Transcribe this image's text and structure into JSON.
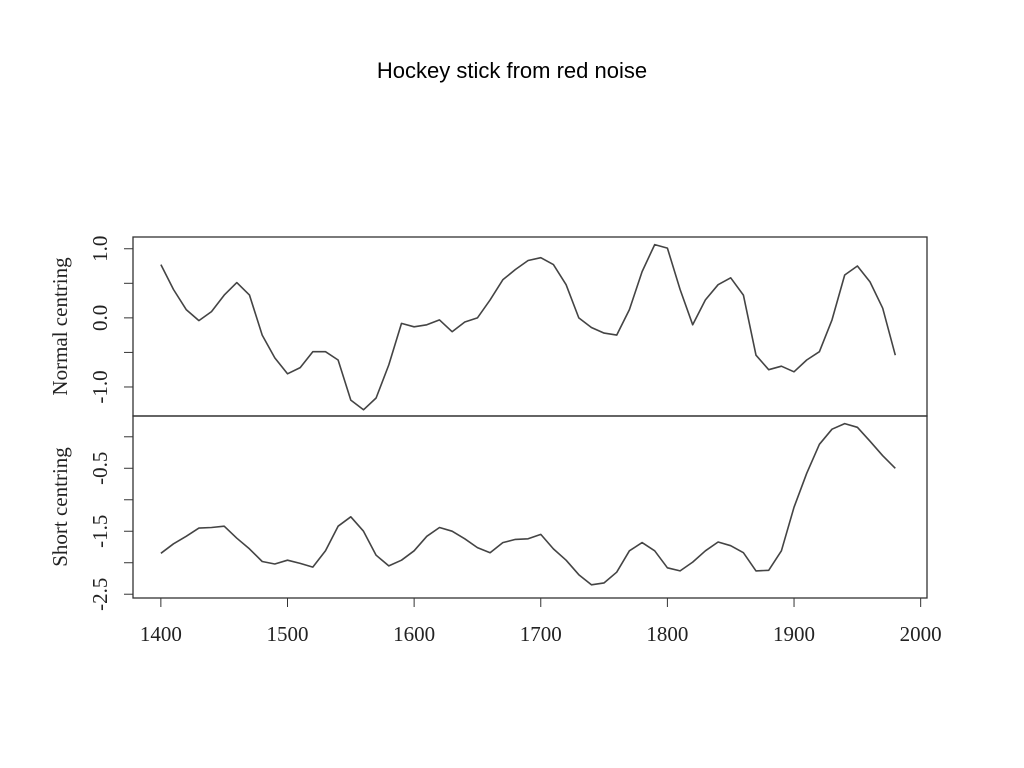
{
  "title": "Hockey stick from red noise",
  "chart_data": [
    {
      "type": "line",
      "ylabel": "Normal centring",
      "x": [
        1400,
        1410,
        1420,
        1430,
        1440,
        1450,
        1460,
        1470,
        1480,
        1490,
        1500,
        1510,
        1520,
        1530,
        1540,
        1550,
        1560,
        1570,
        1580,
        1590,
        1600,
        1610,
        1620,
        1630,
        1640,
        1650,
        1660,
        1670,
        1680,
        1690,
        1700,
        1710,
        1720,
        1730,
        1740,
        1750,
        1760,
        1770,
        1780,
        1790,
        1800,
        1810,
        1820,
        1830,
        1840,
        1850,
        1860,
        1870,
        1880,
        1890,
        1900,
        1910,
        1920,
        1930,
        1940,
        1950,
        1960,
        1970,
        1980
      ],
      "series": [
        {
          "color": "#444444",
          "values": [
            0.77,
            0.41,
            0.12,
            -0.04,
            0.09,
            0.33,
            0.51,
            0.33,
            -0.25,
            -0.58,
            -0.81,
            -0.72,
            -0.49,
            -0.49,
            -0.61,
            -1.19,
            -1.33,
            -1.16,
            -0.68,
            -0.08,
            -0.13,
            -0.1,
            -0.03,
            -0.2,
            -0.06,
            0,
            0.26,
            0.55,
            0.7,
            0.83,
            0.87,
            0.77,
            0.48,
            0,
            -0.14,
            -0.22,
            -0.25,
            0.12,
            0.67,
            1.06,
            1.01,
            0.41,
            -0.1,
            0.26,
            0.48,
            0.58,
            0.33,
            -0.54,
            -0.75,
            -0.7,
            -0.78,
            -0.61,
            -0.49,
            -0.03,
            0.62,
            0.75,
            0.52,
            0.14,
            -0.54
          ]
        }
      ],
      "xlim": [
        1378,
        2005
      ],
      "ylim": [
        -1.42,
        1.17
      ],
      "yticks": [
        {
          "value": 1,
          "label": "1.0"
        },
        {
          "value": 0,
          "label": "0.0"
        },
        {
          "value": -1,
          "label": "-1.0"
        }
      ],
      "minor_yticks": [
        0.5,
        -0.5
      ]
    },
    {
      "type": "line",
      "ylabel": "Short centring",
      "x": [
        1400,
        1410,
        1420,
        1430,
        1440,
        1450,
        1460,
        1470,
        1480,
        1490,
        1500,
        1510,
        1520,
        1530,
        1540,
        1550,
        1560,
        1570,
        1580,
        1590,
        1600,
        1610,
        1620,
        1630,
        1640,
        1650,
        1660,
        1670,
        1680,
        1690,
        1700,
        1710,
        1720,
        1730,
        1740,
        1750,
        1760,
        1770,
        1780,
        1790,
        1800,
        1810,
        1820,
        1830,
        1840,
        1850,
        1860,
        1870,
        1880,
        1890,
        1900,
        1910,
        1920,
        1930,
        1940,
        1950,
        1960,
        1970,
        1980
      ],
      "series": [
        {
          "color": "#444444",
          "values": [
            -1.85,
            -1.7,
            -1.58,
            -1.45,
            -1.44,
            -1.42,
            -1.61,
            -1.78,
            -1.98,
            -2.02,
            -1.96,
            -2.01,
            -2.07,
            -1.81,
            -1.42,
            -1.27,
            -1.5,
            -1.88,
            -2.05,
            -1.96,
            -1.81,
            -1.58,
            -1.44,
            -1.5,
            -1.62,
            -1.76,
            -1.84,
            -1.68,
            -1.63,
            -1.62,
            -1.55,
            -1.78,
            -1.96,
            -2.19,
            -2.35,
            -2.32,
            -2.15,
            -1.81,
            -1.68,
            -1.81,
            -2.08,
            -2.13,
            -1.99,
            -1.81,
            -1.67,
            -1.73,
            -1.84,
            -2.13,
            -2.12,
            -1.81,
            -1.12,
            -0.58,
            -0.12,
            0.12,
            0.21,
            0.15,
            -0.07,
            -0.3,
            -0.5
          ]
        }
      ],
      "xlim": [
        1378,
        2005
      ],
      "ylim": [
        -2.56,
        0.33
      ],
      "yticks": [
        -0.5,
        -1.5,
        -2.5
      ],
      "minor_yticks": [
        0,
        -1,
        -2
      ],
      "xticks": [
        1400,
        1500,
        1600,
        1700,
        1800,
        1900,
        2000
      ]
    }
  ]
}
